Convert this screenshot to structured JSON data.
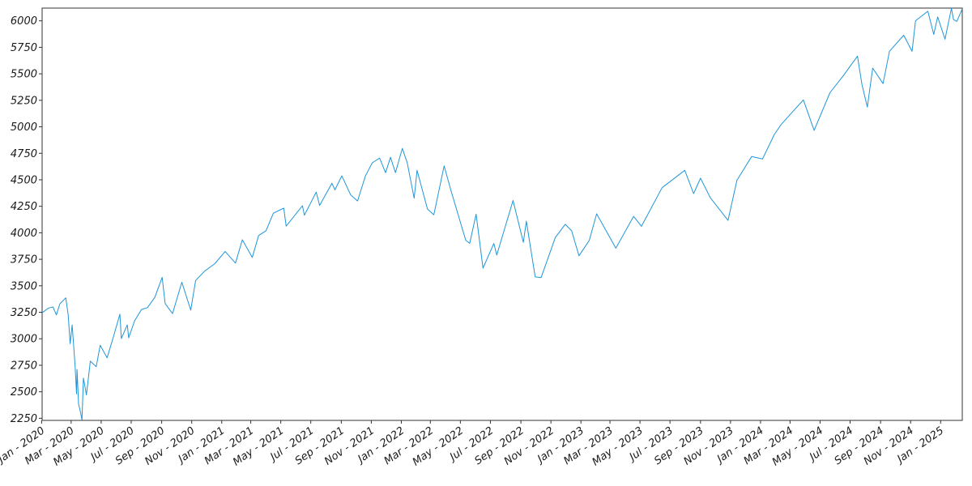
{
  "chart_data": {
    "type": "line",
    "title": "",
    "xlabel": "",
    "ylabel": "",
    "ylim": [
      2230,
      6120
    ],
    "xlim": [
      "2020-01-02",
      "2025-02-14"
    ],
    "grid": false,
    "yticks": [
      2250,
      2500,
      2750,
      3000,
      3250,
      3500,
      3750,
      4000,
      4250,
      4500,
      4750,
      5000,
      5250,
      5500,
      5750,
      6000
    ],
    "xticks": [
      {
        "date": "2020-01-01",
        "label": "Jan - 2020"
      },
      {
        "date": "2020-03-01",
        "label": "Mar - 2020"
      },
      {
        "date": "2020-05-01",
        "label": "May - 2020"
      },
      {
        "date": "2020-07-01",
        "label": "Jul - 2020"
      },
      {
        "date": "2020-09-01",
        "label": "Sep - 2020"
      },
      {
        "date": "2020-11-01",
        "label": "Nov - 2020"
      },
      {
        "date": "2021-01-01",
        "label": "Jan - 2021"
      },
      {
        "date": "2021-03-01",
        "label": "Mar - 2021"
      },
      {
        "date": "2021-05-01",
        "label": "May - 2021"
      },
      {
        "date": "2021-07-01",
        "label": "Jul - 2021"
      },
      {
        "date": "2021-09-01",
        "label": "Sep - 2021"
      },
      {
        "date": "2021-11-01",
        "label": "Nov - 2021"
      },
      {
        "date": "2022-01-01",
        "label": "Jan - 2022"
      },
      {
        "date": "2022-03-01",
        "label": "Mar - 2022"
      },
      {
        "date": "2022-05-01",
        "label": "May - 2022"
      },
      {
        "date": "2022-07-01",
        "label": "Jul - 2022"
      },
      {
        "date": "2022-09-01",
        "label": "Sep - 2022"
      },
      {
        "date": "2022-11-01",
        "label": "Nov - 2022"
      },
      {
        "date": "2023-01-01",
        "label": "Jan - 2023"
      },
      {
        "date": "2023-03-01",
        "label": "Mar - 2023"
      },
      {
        "date": "2023-05-01",
        "label": "May - 2023"
      },
      {
        "date": "2023-07-01",
        "label": "Jul - 2023"
      },
      {
        "date": "2023-09-01",
        "label": "Sep - 2023"
      },
      {
        "date": "2023-11-01",
        "label": "Nov - 2023"
      },
      {
        "date": "2024-01-01",
        "label": "Jan - 2024"
      },
      {
        "date": "2024-03-01",
        "label": "Mar - 2024"
      },
      {
        "date": "2024-05-01",
        "label": "May - 2024"
      },
      {
        "date": "2024-07-01",
        "label": "Jul - 2024"
      },
      {
        "date": "2024-09-01",
        "label": "Sep - 2024"
      },
      {
        "date": "2024-11-01",
        "label": "Nov - 2024"
      },
      {
        "date": "2025-01-01",
        "label": "Jan - 2025"
      }
    ],
    "line_color": "#1f96d8",
    "series": [
      {
        "points": [
          [
            "2020-01-02",
            3245
          ],
          [
            "2020-01-15",
            3290
          ],
          [
            "2020-01-24",
            3300
          ],
          [
            "2020-01-31",
            3225
          ],
          [
            "2020-02-07",
            3330
          ],
          [
            "2020-02-19",
            3386
          ],
          [
            "2020-02-24",
            3225
          ],
          [
            "2020-02-28",
            2954
          ],
          [
            "2020-03-03",
            3130
          ],
          [
            "2020-03-09",
            2746
          ],
          [
            "2020-03-12",
            2480
          ],
          [
            "2020-03-13",
            2711
          ],
          [
            "2020-03-16",
            2386
          ],
          [
            "2020-03-20",
            2305
          ],
          [
            "2020-03-23",
            2237
          ],
          [
            "2020-03-26",
            2630
          ],
          [
            "2020-04-01",
            2470
          ],
          [
            "2020-04-09",
            2789
          ],
          [
            "2020-04-21",
            2736
          ],
          [
            "2020-04-29",
            2939
          ],
          [
            "2020-05-13",
            2820
          ],
          [
            "2020-05-27",
            3036
          ],
          [
            "2020-06-08",
            3232
          ],
          [
            "2020-06-11",
            3002
          ],
          [
            "2020-06-23",
            3131
          ],
          [
            "2020-06-26",
            3009
          ],
          [
            "2020-07-08",
            3170
          ],
          [
            "2020-07-22",
            3276
          ],
          [
            "2020-08-03",
            3294
          ],
          [
            "2020-08-18",
            3390
          ],
          [
            "2020-09-02",
            3580
          ],
          [
            "2020-09-08",
            3332
          ],
          [
            "2020-09-23",
            3237
          ],
          [
            "2020-10-12",
            3534
          ],
          [
            "2020-10-30",
            3270
          ],
          [
            "2020-11-09",
            3550
          ],
          [
            "2020-11-27",
            3638
          ],
          [
            "2020-12-18",
            3709
          ],
          [
            "2021-01-08",
            3824
          ],
          [
            "2021-01-29",
            3714
          ],
          [
            "2021-02-12",
            3934
          ],
          [
            "2021-03-04",
            3768
          ],
          [
            "2021-03-17",
            3974
          ],
          [
            "2021-04-01",
            4019
          ],
          [
            "2021-04-16",
            4185
          ],
          [
            "2021-05-07",
            4232
          ],
          [
            "2021-05-12",
            4063
          ],
          [
            "2021-06-14",
            4255
          ],
          [
            "2021-06-18",
            4166
          ],
          [
            "2021-07-12",
            4384
          ],
          [
            "2021-07-19",
            4258
          ],
          [
            "2021-08-13",
            4468
          ],
          [
            "2021-08-19",
            4405
          ],
          [
            "2021-09-02",
            4537
          ],
          [
            "2021-09-20",
            4358
          ],
          [
            "2021-10-04",
            4300
          ],
          [
            "2021-10-20",
            4536
          ],
          [
            "2021-11-03",
            4660
          ],
          [
            "2021-11-18",
            4705
          ],
          [
            "2021-11-30",
            4567
          ],
          [
            "2021-12-10",
            4712
          ],
          [
            "2021-12-20",
            4568
          ],
          [
            "2022-01-03",
            4796
          ],
          [
            "2022-01-13",
            4659
          ],
          [
            "2022-01-27",
            4326
          ],
          [
            "2022-02-02",
            4589
          ],
          [
            "2022-02-23",
            4225
          ],
          [
            "2022-03-08",
            4170
          ],
          [
            "2022-03-29",
            4631
          ],
          [
            "2022-04-11",
            4413
          ],
          [
            "2022-04-29",
            4132
          ],
          [
            "2022-05-12",
            3930
          ],
          [
            "2022-05-20",
            3901
          ],
          [
            "2022-06-02",
            4176
          ],
          [
            "2022-06-16",
            3667
          ],
          [
            "2022-07-08",
            3899
          ],
          [
            "2022-07-14",
            3790
          ],
          [
            "2022-08-16",
            4305
          ],
          [
            "2022-09-06",
            3909
          ],
          [
            "2022-09-12",
            4110
          ],
          [
            "2022-09-30",
            3585
          ],
          [
            "2022-10-12",
            3577
          ],
          [
            "2022-11-10",
            3956
          ],
          [
            "2022-11-30",
            4080
          ],
          [
            "2022-12-13",
            4019
          ],
          [
            "2022-12-28",
            3783
          ],
          [
            "2023-01-18",
            3928
          ],
          [
            "2023-02-02",
            4179
          ],
          [
            "2023-03-13",
            3855
          ],
          [
            "2023-04-18",
            4155
          ],
          [
            "2023-05-04",
            4061
          ],
          [
            "2023-06-15",
            4426
          ],
          [
            "2023-07-31",
            4589
          ],
          [
            "2023-08-18",
            4370
          ],
          [
            "2023-09-01",
            4515
          ],
          [
            "2023-09-21",
            4330
          ],
          [
            "2023-10-27",
            4117
          ],
          [
            "2023-11-14",
            4496
          ],
          [
            "2023-12-14",
            4720
          ],
          [
            "2024-01-05",
            4697
          ],
          [
            "2024-01-29",
            4927
          ],
          [
            "2024-02-12",
            5022
          ],
          [
            "2024-03-28",
            5254
          ],
          [
            "2024-04-19",
            4967
          ],
          [
            "2024-05-21",
            5321
          ],
          [
            "2024-06-18",
            5487
          ],
          [
            "2024-07-16",
            5667
          ],
          [
            "2024-07-25",
            5400
          ],
          [
            "2024-08-05",
            5186
          ],
          [
            "2024-08-16",
            5554
          ],
          [
            "2024-09-06",
            5408
          ],
          [
            "2024-09-19",
            5713
          ],
          [
            "2024-10-18",
            5864
          ],
          [
            "2024-11-04",
            5712
          ],
          [
            "2024-11-11",
            6001
          ],
          [
            "2024-12-06",
            6090
          ],
          [
            "2024-12-18",
            5872
          ],
          [
            "2024-12-26",
            6037
          ],
          [
            "2025-01-10",
            5827
          ],
          [
            "2025-01-23",
            6118
          ],
          [
            "2025-01-27",
            6012
          ],
          [
            "2025-02-03",
            5995
          ],
          [
            "2025-02-14",
            6114
          ]
        ]
      }
    ]
  }
}
